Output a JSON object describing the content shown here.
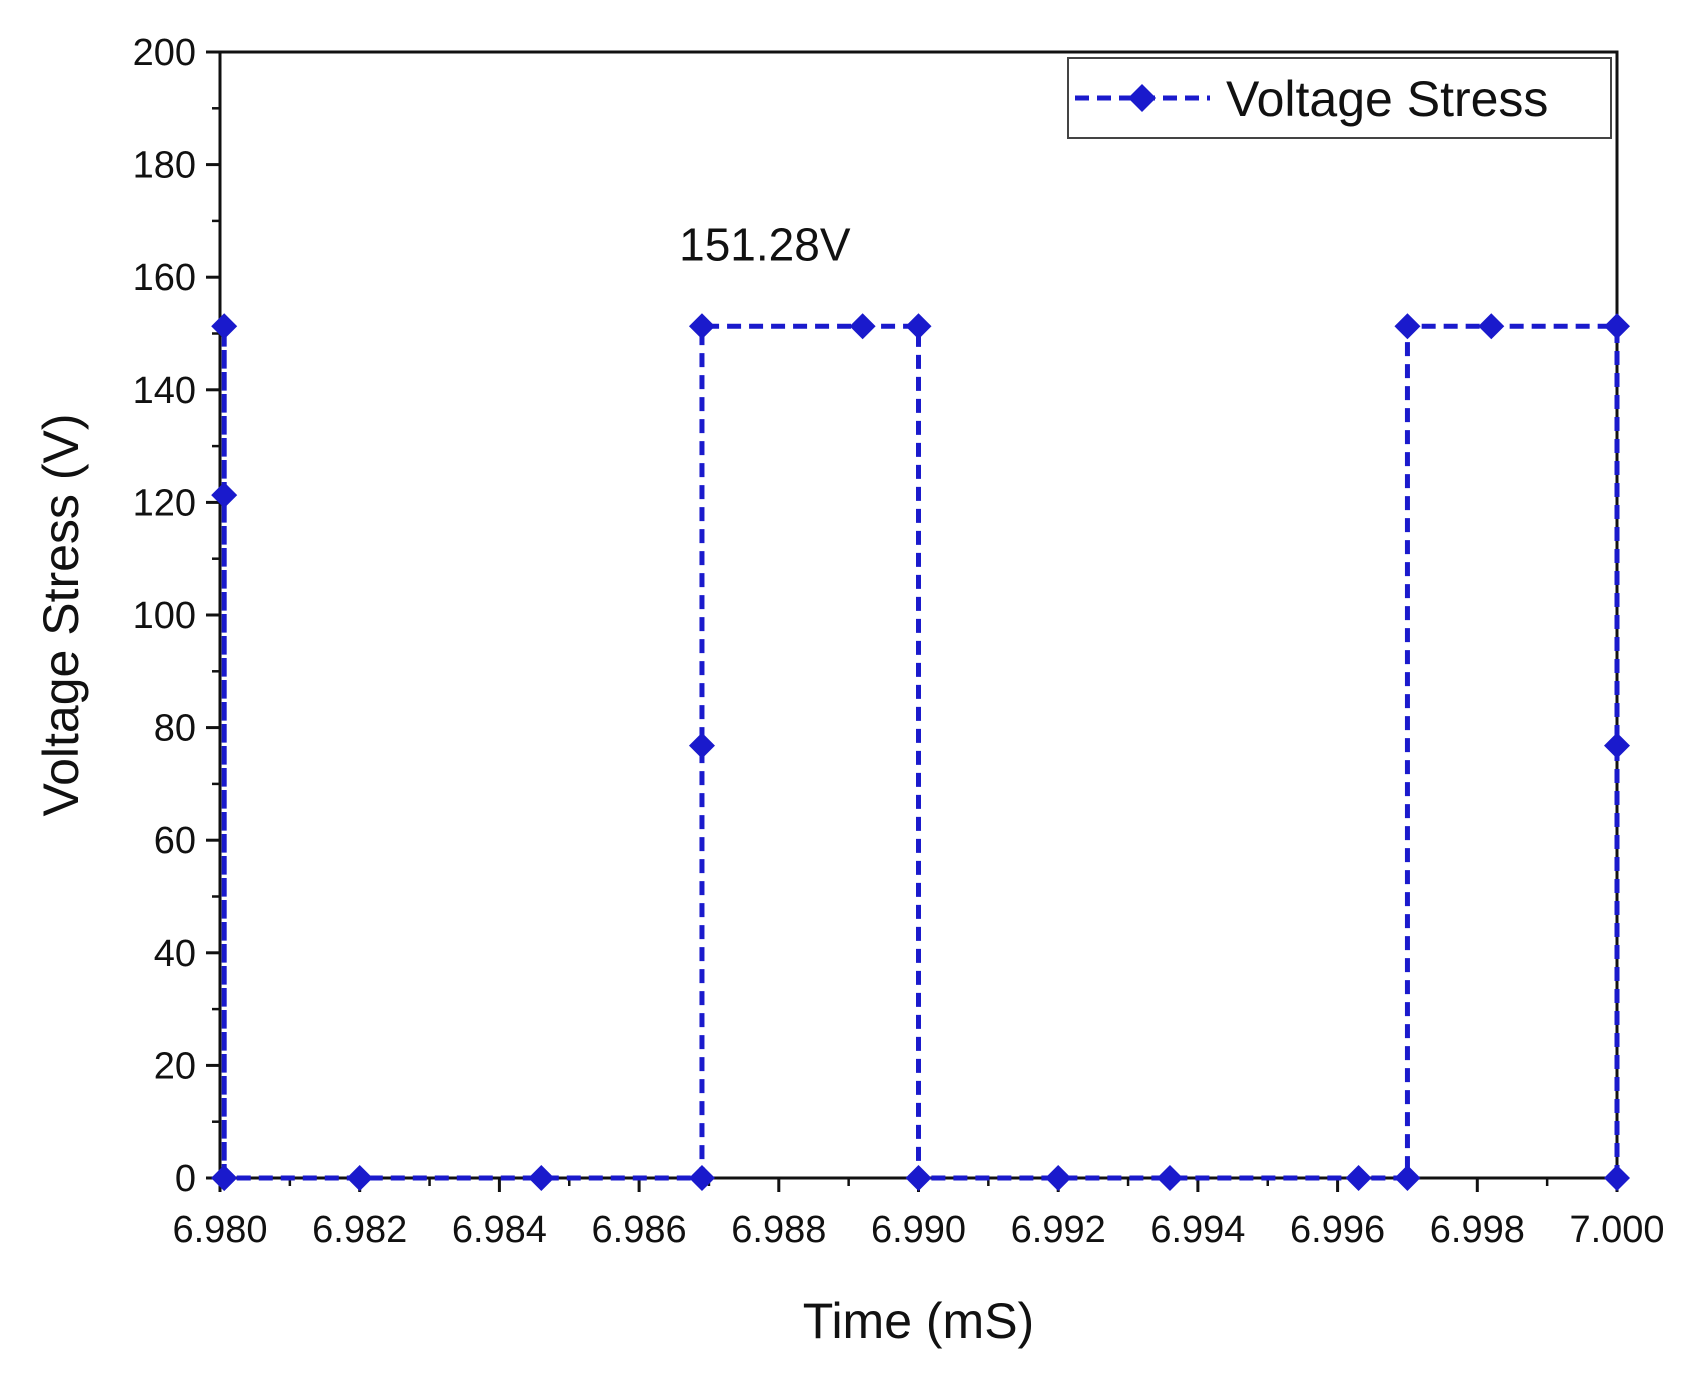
{
  "chart_data": {
    "type": "line",
    "title": "",
    "xlabel": "Time (mS)",
    "ylabel": "Voltage Stress (V)",
    "xlim": [
      6.98,
      7.0
    ],
    "ylim": [
      0,
      200
    ],
    "grid": false,
    "x_ticks": [
      "6.980",
      "6.982",
      "6.984",
      "6.986",
      "6.988",
      "6.990",
      "6.992",
      "6.994",
      "6.996",
      "6.998",
      "7.000"
    ],
    "x_tick_values": [
      6.98,
      6.982,
      6.984,
      6.986,
      6.988,
      6.99,
      6.992,
      6.994,
      6.996,
      6.998,
      7.0
    ],
    "y_ticks": [
      "0",
      "20",
      "40",
      "60",
      "80",
      "100",
      "120",
      "140",
      "160",
      "180",
      "200"
    ],
    "y_tick_values": [
      0,
      20,
      40,
      60,
      80,
      100,
      120,
      140,
      160,
      180,
      200
    ],
    "legend_position": "top-right",
    "series": [
      {
        "name": "Voltage Stress",
        "color": "#1a1acc",
        "line_style": "dashed",
        "marker": "diamond",
        "x": [
          6.98006,
          6.98006,
          6.98006,
          6.98006,
          6.982,
          6.9846,
          6.9869,
          6.9869,
          6.9869,
          6.9892,
          6.99,
          6.99,
          6.992,
          6.9936,
          6.9963,
          6.997,
          6.997,
          6.9982,
          7.0,
          7.0,
          7.0
        ],
        "values": [
          0,
          151.28,
          121.3,
          0,
          0,
          0,
          0,
          76.8,
          151.28,
          151.28,
          151.28,
          0,
          0,
          0,
          0,
          0,
          151.28,
          151.28,
          151.28,
          76.8,
          0
        ]
      }
    ],
    "annotations": [
      {
        "text": "151.28V",
        "x": 6.9878,
        "y": 163
      }
    ]
  }
}
